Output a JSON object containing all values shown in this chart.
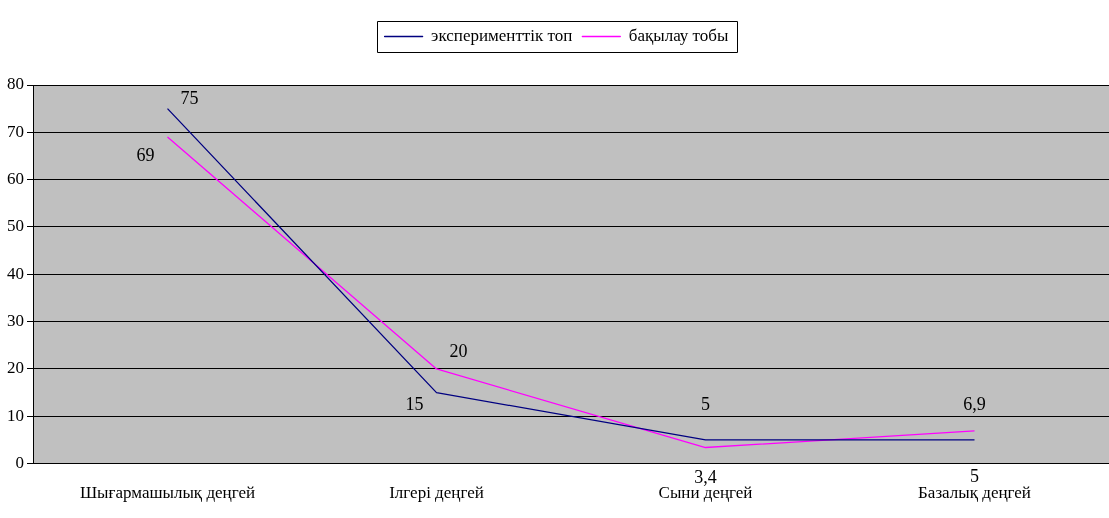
{
  "chart_data": {
    "type": "line",
    "categories": [
      "Шығармашылық деңгей",
      "Ілгері деңгей",
      "Сыни деңгей",
      "Базалық деңгей"
    ],
    "series": [
      {
        "name": "эксперименттік топ",
        "color": "#000080",
        "values": [
          75,
          15,
          5,
          5
        ],
        "value_labels": [
          "75",
          "15",
          "5",
          "5"
        ]
      },
      {
        "name": "бақылау тобы",
        "color": "#ff00ff",
        "values": [
          69,
          20,
          3.4,
          6.9
        ],
        "value_labels": [
          "69",
          "20",
          "3,4",
          "6,9"
        ]
      }
    ],
    "ylim": [
      0,
      80
    ],
    "yticks": [
      0,
      10,
      20,
      30,
      40,
      50,
      60,
      70,
      80
    ],
    "grid": "y",
    "legend": "top",
    "marker": "none",
    "line_style": "solid"
  }
}
